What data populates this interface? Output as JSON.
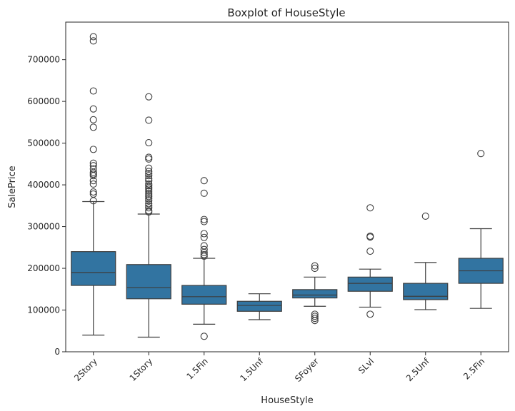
{
  "chart_data": {
    "type": "box",
    "title": "Boxplot of HouseStyle",
    "xlabel": "HouseStyle",
    "ylabel": "SalePrice",
    "ylim": [
      0,
      790000
    ],
    "yticks": [
      0,
      100000,
      200000,
      300000,
      400000,
      500000,
      600000,
      700000
    ],
    "ytick_labels": [
      "0",
      "100000",
      "200000",
      "300000",
      "400000",
      "500000",
      "600000",
      "700000"
    ],
    "xtick_rotation_deg": 45,
    "grid": false,
    "legend": "none",
    "box_color": "#3274a1",
    "line_color": "#3d3d3d",
    "categories": [
      "2Story",
      "1Story",
      "1.5Fin",
      "1.5Unf",
      "SFoyer",
      "SLvl",
      "2.5Unf",
      "2.5Fin"
    ],
    "boxes": [
      {
        "category": "2Story",
        "whisker_low": 40000,
        "q1": 159000,
        "median": 190000,
        "q3": 240000,
        "whisker_high": 360000,
        "outliers": [
          362000,
          378000,
          383000,
          402000,
          410000,
          422000,
          426000,
          430000,
          438000,
          446000,
          452000,
          485000,
          538000,
          556000,
          582000,
          625000,
          745000,
          755000
        ]
      },
      {
        "category": "1Story",
        "whisker_low": 35000,
        "q1": 127000,
        "median": 154000,
        "q3": 209000,
        "whisker_high": 330000,
        "outliers": [
          335000,
          338000,
          345000,
          350000,
          355000,
          362000,
          367000,
          372000,
          376000,
          380000,
          385000,
          390000,
          394000,
          398000,
          402000,
          410000,
          415000,
          422000,
          427000,
          432000,
          440000,
          462000,
          466000,
          501000,
          555000,
          611000
        ]
      },
      {
        "category": "1.5Fin",
        "whisker_low": 66000,
        "q1": 114000,
        "median": 132000,
        "q3": 159000,
        "whisker_high": 224000,
        "outliers": [
          37000,
          229000,
          233000,
          238000,
          245000,
          254000,
          274000,
          283000,
          312000,
          317000,
          380000,
          410000
        ]
      },
      {
        "category": "1.5Unf",
        "whisker_low": 77000,
        "q1": 97000,
        "median": 111000,
        "q3": 121000,
        "whisker_high": 139000,
        "outliers": []
      },
      {
        "category": "SFoyer",
        "whisker_low": 109000,
        "q1": 129000,
        "median": 136000,
        "q3": 149000,
        "whisker_high": 179000,
        "outliers": [
          75000,
          80000,
          85000,
          90000,
          200000,
          206000
        ]
      },
      {
        "category": "SLvl",
        "whisker_low": 107000,
        "q1": 145000,
        "median": 164000,
        "q3": 179000,
        "whisker_high": 198000,
        "outliers": [
          90000,
          241000,
          275000,
          277000,
          345000
        ]
      },
      {
        "category": "2.5Unf",
        "whisker_low": 101000,
        "q1": 125000,
        "median": 133000,
        "q3": 164000,
        "whisker_high": 214000,
        "outliers": [
          325000
        ]
      },
      {
        "category": "2.5Fin",
        "whisker_low": 104000,
        "q1": 164000,
        "median": 194000,
        "q3": 224000,
        "whisker_high": 295000,
        "outliers": [
          475000
        ]
      }
    ]
  }
}
